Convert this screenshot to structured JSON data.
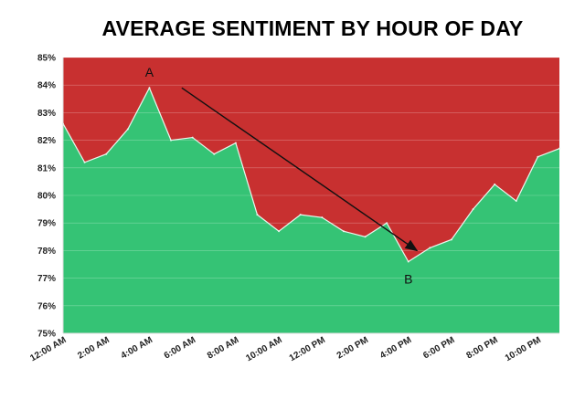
{
  "chart_data": {
    "type": "area",
    "title": "AVERAGE SENTIMENT BY HOUR OF DAY",
    "xlabel": "",
    "ylabel": "",
    "ylim": [
      75,
      85
    ],
    "yticks": [
      "75%",
      "76%",
      "77%",
      "78%",
      "79%",
      "80%",
      "81%",
      "82%",
      "83%",
      "84%",
      "85%"
    ],
    "xtick_labels": [
      "12:00 AM",
      "2:00 AM",
      "4:00 AM",
      "6:00 AM",
      "8:00 AM",
      "10:00 AM",
      "12:00 PM",
      "2:00 PM",
      "4:00 PM",
      "6:00 PM",
      "8:00 PM",
      "10:00 PM"
    ],
    "x": [
      0,
      1,
      2,
      3,
      4,
      5,
      6,
      7,
      8,
      9,
      10,
      11,
      12,
      13,
      14,
      15,
      16,
      17,
      18,
      19,
      20,
      21,
      22,
      23
    ],
    "series": [
      {
        "values": [
          82.6,
          81.2,
          81.5,
          82.4,
          83.9,
          82.0,
          82.1,
          81.5,
          81.9,
          79.3,
          78.7,
          79.3,
          79.2,
          78.7,
          78.5,
          79.0,
          77.6,
          78.1,
          78.4,
          79.5,
          80.4,
          79.8,
          81.4,
          81.7
        ]
      }
    ],
    "grid": true,
    "colors": {
      "positive": "#35c375",
      "negative": "#c83030",
      "grid": "#ffffff",
      "axis": "#dddddd"
    },
    "annotations": [
      {
        "text": "A",
        "x": 4,
        "y": 84.3
      },
      {
        "text": "B",
        "x": 16,
        "y": 76.8
      }
    ],
    "arrow": {
      "from": [
        5.5,
        83.9
      ],
      "to": [
        16.4,
        78.0
      ]
    }
  }
}
